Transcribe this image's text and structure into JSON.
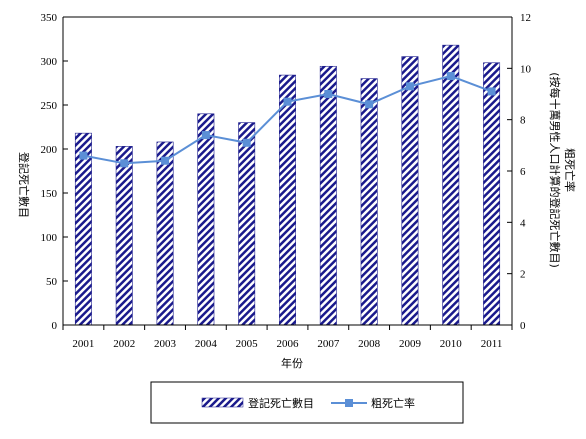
{
  "chart_data": {
    "type": "bar",
    "categories": [
      "2001",
      "2002",
      "2003",
      "2004",
      "2005",
      "2006",
      "2007",
      "2008",
      "2009",
      "2010",
      "2011"
    ],
    "series": [
      {
        "name": "登記死亡數目",
        "kind": "bar",
        "axis": "left",
        "values": [
          218,
          203,
          208,
          240,
          230,
          284,
          294,
          280,
          305,
          318,
          298
        ]
      },
      {
        "name": "粗死亡率",
        "kind": "line",
        "axis": "right",
        "values": [
          6.6,
          6.3,
          6.4,
          7.4,
          7.1,
          8.7,
          9.0,
          8.6,
          9.3,
          9.7,
          9.1
        ]
      }
    ],
    "xlabel": "年份",
    "ylabel_left": "登記死亡數目",
    "ylabel_right_line1": "粗死亡率",
    "ylabel_right_line2": "(按每十萬男性人口計算的登記死亡數目)",
    "ylim_left": [
      0,
      350
    ],
    "ylim_right": [
      0,
      12
    ],
    "yticks_left": [
      "0",
      "50",
      "100",
      "150",
      "200",
      "250",
      "300",
      "350"
    ],
    "yticks_right": [
      "0",
      "2",
      "4",
      "6",
      "8",
      "10",
      "12"
    ],
    "grid": false,
    "legend_position": "bottom",
    "colors": {
      "bar_stripe": "#1a1a8c",
      "line": "#5b8fd6",
      "axis": "#000000"
    }
  }
}
